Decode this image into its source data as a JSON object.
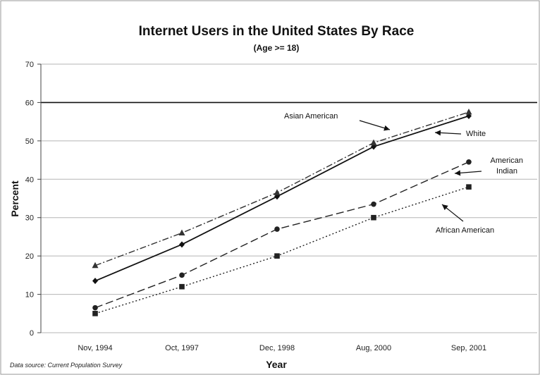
{
  "chart_data": {
    "type": "line",
    "title": "Internet Users in the United States By Race",
    "subtitle": "(Age >= 18)",
    "xlabel": "Year",
    "ylabel": "Percent",
    "categories": [
      "Nov, 1994",
      "Oct, 1997",
      "Dec, 1998",
      "Aug, 2000",
      "Sep, 2001"
    ],
    "ylim": [
      0,
      70
    ],
    "yticks": [
      0,
      10,
      20,
      30,
      40,
      50,
      60,
      70
    ],
    "grid": true,
    "series": [
      {
        "name": "White",
        "values": [
          13.5,
          23,
          35.5,
          48.5,
          56.5
        ],
        "color": "#111111",
        "dash": "solid",
        "marker": "diamond"
      },
      {
        "name": "Asian American",
        "values": [
          17.5,
          26,
          36.5,
          49.5,
          57.5
        ],
        "color": "#333333",
        "dash": "dash-dot",
        "marker": "triangle"
      },
      {
        "name": "American Indian",
        "values": [
          6.5,
          15,
          27,
          33.5,
          44.5
        ],
        "color": "#222222",
        "dash": "long-dash",
        "marker": "circle"
      },
      {
        "name": "African American",
        "values": [
          5,
          12,
          20,
          30,
          38
        ],
        "color": "#222222",
        "dash": "dotted",
        "marker": "square"
      }
    ],
    "annotations": [
      {
        "text": "Asian American",
        "series": "Asian American"
      },
      {
        "text": "White",
        "series": "White"
      },
      {
        "text": "American",
        "series": "American Indian"
      },
      {
        "text": "Indian",
        "series": "American Indian"
      },
      {
        "text": "African American",
        "series": "African American"
      }
    ],
    "source_note": "Data source: Current Population Survey"
  }
}
